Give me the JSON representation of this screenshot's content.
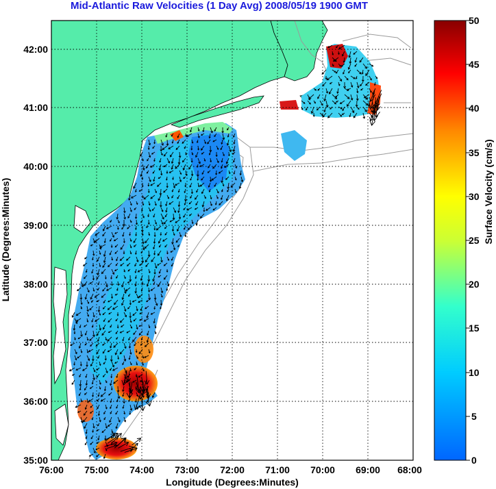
{
  "title": "Mid-Atlantic Raw Velocities (1 Day Avg) 2008/05/19 1900 GMT",
  "map": {
    "xlabel": "Longitude (Degrees:Minutes)",
    "ylabel": "Latitude (Degrees:Minutes)",
    "x_ticks": [
      "76:00",
      "75:00",
      "74:00",
      "73:00",
      "72:00",
      "71:00",
      "70:00",
      "69:00",
      "68:00"
    ],
    "y_ticks": [
      "42:00",
      "41:00",
      "40:00",
      "39:00",
      "38:00",
      "37:00",
      "36:00",
      "35:00"
    ],
    "lon_range": [
      -76,
      -68
    ],
    "lat_range": [
      35,
      42.5
    ],
    "land_color": "#55ecaa",
    "grid": "dotted"
  },
  "colorbar": {
    "label": "Surface Velocity (cm/s)",
    "ticks": [
      "50",
      "45",
      "40",
      "35",
      "30",
      "25",
      "20",
      "15",
      "10",
      "5",
      "0"
    ],
    "range": [
      0,
      50
    ]
  }
}
